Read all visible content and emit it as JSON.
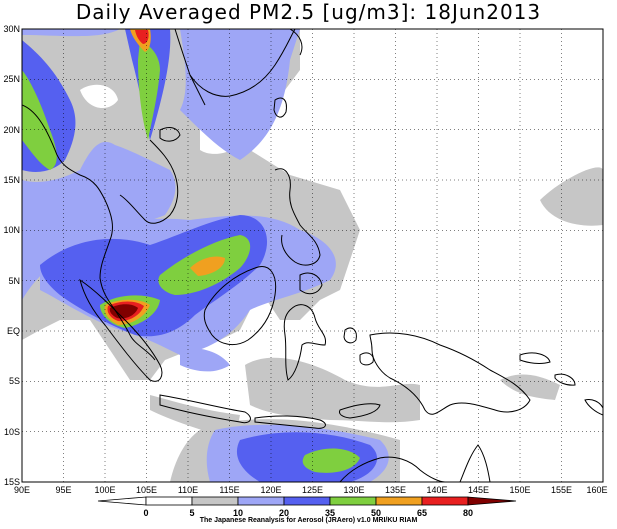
{
  "title": "Daily Averaged PM2.5 [ug/m3]: 18Jun2013",
  "credit": "The Japanese Reanalysis for Aerosol (JRAero) v1.0 MRI/KU RIAM",
  "map": {
    "lon_range": [
      90,
      160
    ],
    "lat_range": [
      -15,
      30
    ],
    "lon_ticks": [
      "90E",
      "95E",
      "100E",
      "105E",
      "110E",
      "115E",
      "120E",
      "125E",
      "130E",
      "135E",
      "140E",
      "145E",
      "150E",
      "155E",
      "160E"
    ],
    "lat_ticks": [
      "30N",
      "25N",
      "20N",
      "15N",
      "10N",
      "5N",
      "EQ",
      "5S",
      "10S",
      "15S"
    ]
  },
  "colorbar": {
    "labels": [
      "0",
      "5",
      "10",
      "20",
      "35",
      "50",
      "65",
      "80"
    ],
    "colors": [
      "#ffffff",
      "#c6c6c6",
      "#9ea6f6",
      "#5560f0",
      "#7fcf3f",
      "#f0a020",
      "#e82020",
      "#800000"
    ]
  }
}
